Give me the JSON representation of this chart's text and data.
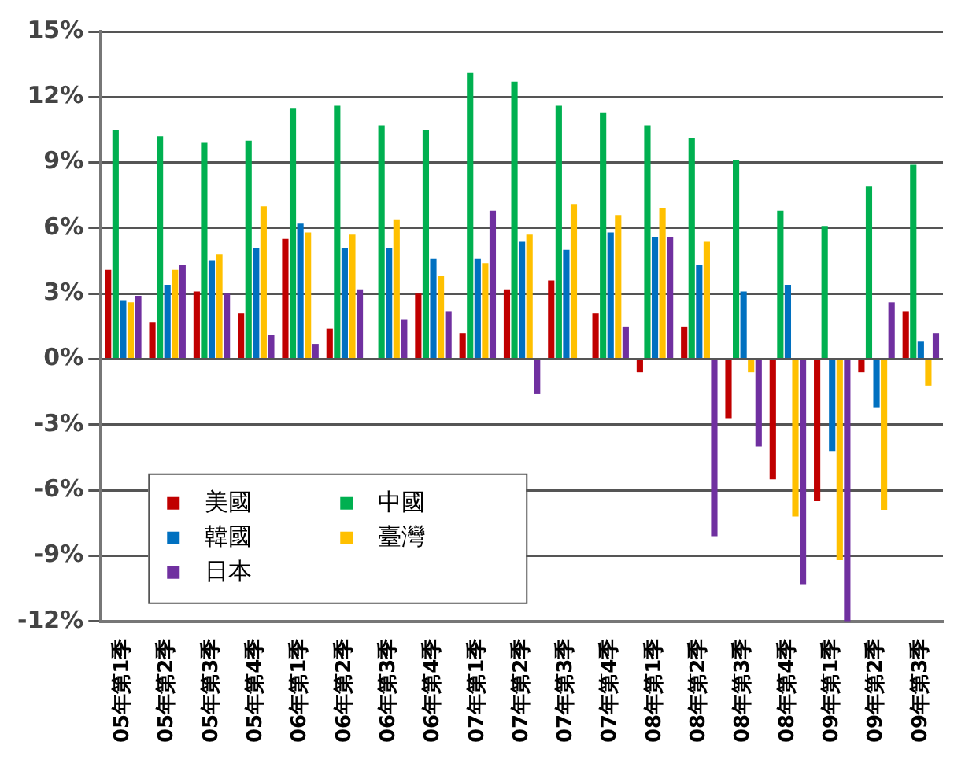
{
  "chart_data": {
    "type": "bar",
    "categories": [
      "05年第1季",
      "05年第2季",
      "05年第3季",
      "05年第4季",
      "06年第1季",
      "06年第2季",
      "06年第3季",
      "06年第4季",
      "07年第1季",
      "07年第2季",
      "07年第3季",
      "07年第4季",
      "08年第1季",
      "08年第2季",
      "08年第3季",
      "08年第4季",
      "09年第1季",
      "09年第2季",
      "09年第3季"
    ],
    "series": [
      {
        "name": "美國",
        "color": "#c00000",
        "values": [
          4.1,
          1.7,
          3.1,
          2.1,
          5.5,
          1.4,
          0,
          3.0,
          1.2,
          3.2,
          3.6,
          2.1,
          -0.6,
          1.5,
          -2.7,
          -5.5,
          -6.5,
          -0.6,
          2.2
        ]
      },
      {
        "name": "中國",
        "color": "#00b050",
        "values": [
          10.5,
          10.2,
          9.9,
          10.0,
          11.5,
          11.6,
          10.7,
          10.5,
          13.1,
          12.7,
          11.6,
          11.3,
          10.7,
          10.1,
          9.1,
          6.8,
          6.1,
          7.9,
          8.9
        ]
      },
      {
        "name": "韓國",
        "color": "#0070c0",
        "values": [
          2.7,
          3.4,
          4.5,
          5.1,
          6.2,
          5.1,
          5.1,
          4.6,
          4.6,
          5.4,
          5.0,
          5.8,
          5.6,
          4.3,
          3.1,
          3.4,
          -4.2,
          -2.2,
          0.8
        ]
      },
      {
        "name": "臺灣",
        "color": "#ffc000",
        "values": [
          2.6,
          4.1,
          4.8,
          7.0,
          5.8,
          5.7,
          6.4,
          3.8,
          4.4,
          5.7,
          7.1,
          6.6,
          6.9,
          5.4,
          -0.6,
          -7.2,
          -9.2,
          -6.9,
          -1.2
        ]
      },
      {
        "name": "日本",
        "color": "#7030a0",
        "values": [
          2.9,
          4.3,
          3.0,
          1.1,
          0.7,
          3.2,
          1.8,
          2.2,
          6.8,
          -1.6,
          0,
          1.5,
          5.6,
          -8.1,
          -4.0,
          -10.3,
          -12.0,
          2.6,
          1.2
        ]
      }
    ],
    "ylim": [
      -12,
      15
    ],
    "yticks": [
      {
        "value": -12,
        "label": "-12%"
      },
      {
        "value": -9,
        "label": "-9%"
      },
      {
        "value": -6,
        "label": "-6%"
      },
      {
        "value": -3,
        "label": "-3%"
      },
      {
        "value": 0,
        "label": "0%"
      },
      {
        "value": 3,
        "label": "3%"
      },
      {
        "value": 6,
        "label": "6%"
      },
      {
        "value": 9,
        "label": "9%"
      },
      {
        "value": 12,
        "label": "12%"
      },
      {
        "value": 15,
        "label": "15%"
      }
    ],
    "grid": "y",
    "legend": "bottom left"
  }
}
